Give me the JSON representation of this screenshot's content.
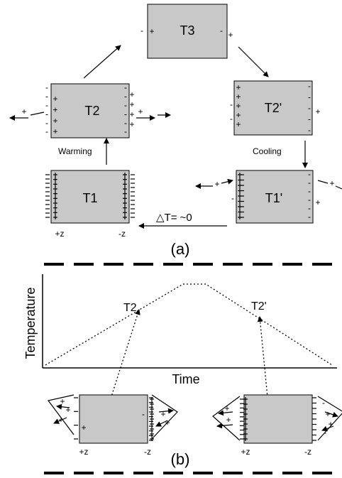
{
  "panel_a": {
    "label": "(a)",
    "states": {
      "t3": "T3",
      "t2": "T2",
      "t2p": "T2'",
      "t1": "T1",
      "t1p": "T1'"
    },
    "warming": "Warming",
    "cooling": "Cooling",
    "delta": "△T= ~0",
    "plus_z": "+z",
    "minus_z": "-z"
  },
  "panel_b": {
    "label": "(b)",
    "ylabel": "Temperature",
    "xlabel": "Time",
    "t2": "T2",
    "t2p": "T2'",
    "plus_z": "+z",
    "minus_z": "-z"
  },
  "glyphs": {
    "plus": "+",
    "minus": "-"
  }
}
